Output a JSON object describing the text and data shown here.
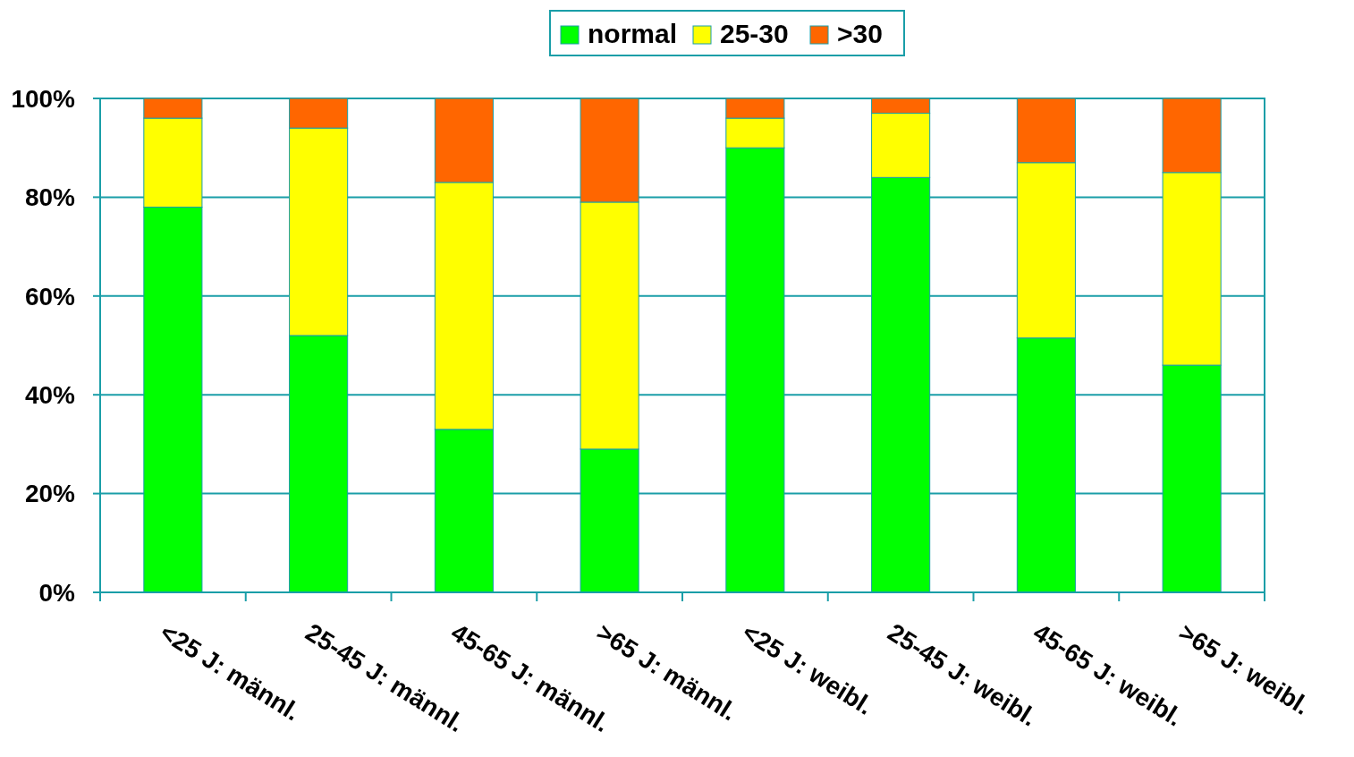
{
  "chart_data": {
    "type": "bar",
    "stacked": true,
    "categories": [
      "<25 J: männl.",
      "25-45 J: männl.",
      "45-65 J: männl.",
      ">65 J: männl.",
      "<25 J: weibl.",
      "25-45 J: weibl.",
      "45-65 J: weibl.",
      ">65 J: weibl."
    ],
    "series": [
      {
        "name": "normal",
        "color": "#00ff00",
        "values": [
          78,
          52,
          33,
          29,
          90,
          84,
          51.5,
          46
        ]
      },
      {
        "name": "25-30",
        "color": "#ffff00",
        "values": [
          18,
          42,
          50,
          50,
          6,
          13,
          35.5,
          39
        ]
      },
      {
        "name": ">30",
        "color": "#ff6600",
        "values": [
          4,
          6,
          17,
          21,
          4,
          3,
          13,
          15
        ]
      }
    ],
    "ylim": [
      0,
      100
    ],
    "yticks": [
      {
        "value": 0,
        "label": "0%"
      },
      {
        "value": 20,
        "label": "20%"
      },
      {
        "value": 40,
        "label": "40%"
      },
      {
        "value": 60,
        "label": "60%"
      },
      {
        "value": 80,
        "label": "80%"
      },
      {
        "value": 100,
        "label": "100%"
      }
    ],
    "grid": "y",
    "legend": "top"
  }
}
